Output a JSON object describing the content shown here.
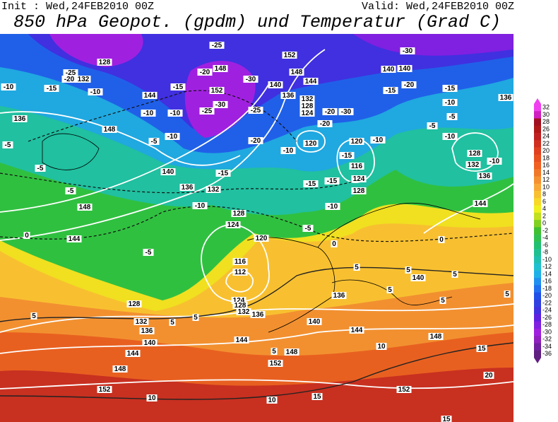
{
  "header": {
    "init": "Init : Wed,24FEB2010 00Z",
    "valid": "Valid: Wed,24FEB2010 00Z",
    "title": "850 hPa Geopot. (gpdm) und Temperatur (Grad C)"
  },
  "map": {
    "geopotential_labels": [
      128,
      132,
      152,
      148,
      144,
      140,
      136,
      132,
      128,
      124,
      120,
      120,
      116,
      124,
      128,
      144,
      148,
      136,
      148,
      144,
      140,
      136,
      132,
      128,
      124,
      120,
      116,
      112,
      124,
      128,
      132,
      136,
      128,
      132,
      136,
      140,
      144,
      148,
      152,
      144,
      148,
      152,
      140,
      144,
      148,
      152,
      136,
      140,
      144,
      136,
      132,
      128,
      136,
      140,
      140,
      148,
      152
    ],
    "temperature_labels": [
      -10,
      -15,
      -20,
      -25,
      -10,
      -10,
      -10,
      -15,
      -20,
      -25,
      -30,
      -25,
      -30,
      -25,
      -20,
      -10,
      -10,
      -5,
      -15,
      -10,
      -5,
      -5,
      -5,
      0,
      -5,
      -5,
      -10,
      -15,
      -15,
      -15,
      -20,
      -20,
      -30,
      -10,
      -15,
      -20,
      -30,
      -15,
      -10,
      -5,
      -10,
      -10,
      -5,
      0,
      0,
      5,
      5,
      5,
      5,
      5,
      5,
      5,
      5,
      5,
      5,
      10,
      15,
      20,
      10,
      10,
      15,
      15
    ]
  },
  "colorbar": {
    "ticks": [
      32,
      30,
      28,
      26,
      24,
      22,
      20,
      18,
      16,
      14,
      12,
      10,
      8,
      6,
      4,
      2,
      0,
      -2,
      -4,
      -6,
      -8,
      -10,
      -12,
      -14,
      -16,
      -18,
      -20,
      -22,
      -24,
      -26,
      -28,
      -30,
      -32,
      -34,
      -36
    ],
    "colors": [
      "#f040f0",
      "#d020c0",
      "#a01020",
      "#b01818",
      "#c02020",
      "#d03020",
      "#e04020",
      "#e85020",
      "#f06020",
      "#f07828",
      "#f59030",
      "#f8a838",
      "#f8c030",
      "#f8d828",
      "#f0f020",
      "#c0e020",
      "#80d020",
      "#40c030",
      "#30c050",
      "#20c070",
      "#20c090",
      "#20c0b0",
      "#20c0d0",
      "#20b0e8",
      "#2090f0",
      "#2070f0",
      "#2050e8",
      "#3040e0",
      "#4030e0",
      "#6020e0",
      "#8020e0",
      "#a020e0",
      "#9020c0",
      "#7020a0",
      "#602080"
    ]
  }
}
